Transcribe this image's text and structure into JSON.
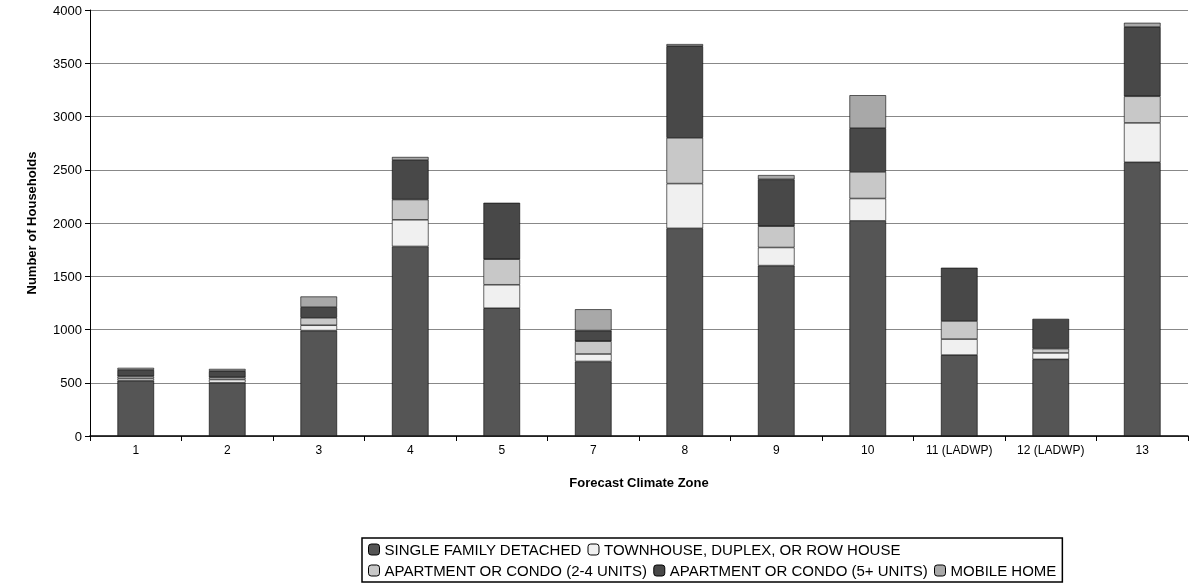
{
  "chart_data": {
    "type": "bar",
    "stacked": true,
    "xlabel": "Forecast Climate Zone",
    "ylabel": "Number of Households",
    "categories": [
      "1",
      "2",
      "3",
      "4",
      "5",
      "7",
      "8",
      "9",
      "10",
      "11 (LADWP)",
      "12 (LADWP)",
      "13"
    ],
    "series": [
      {
        "name": "SINGLE FAMILY DETACHED",
        "color": "#555555",
        "values": [
          520,
          500,
          990,
          1780,
          1200,
          700,
          1950,
          1600,
          2020,
          760,
          720,
          2570
        ]
      },
      {
        "name": "TOWNHOUSE, DUPLEX, OR ROW HOUSE",
        "color": "#f0f0f0",
        "values": [
          20,
          30,
          50,
          250,
          220,
          70,
          420,
          170,
          210,
          150,
          60,
          370
        ]
      },
      {
        "name": "APARTMENT OR CONDO (2-4 UNITS)",
        "color": "#c8c8c8",
        "values": [
          20,
          20,
          70,
          190,
          240,
          120,
          430,
          200,
          250,
          170,
          40,
          250
        ]
      },
      {
        "name": "APARTMENT OR CONDO (5+ UNITS)",
        "color": "#484848",
        "values": [
          60,
          60,
          100,
          370,
          530,
          100,
          860,
          440,
          410,
          500,
          280,
          650
        ]
      },
      {
        "name": "MOBILE HOME",
        "color": "#a8a8a8",
        "values": [
          20,
          20,
          100,
          30,
          null,
          200,
          20,
          40,
          310,
          null,
          null,
          40
        ]
      }
    ],
    "ylim": [
      0,
      4000
    ],
    "yticks": [
      0,
      500,
      {
        "value": 1000,
        "label": "1000"
      },
      {
        "value": 1500,
        "label": "1500"
      },
      {
        "value": 2000,
        "label": "2000"
      },
      {
        "value": 2500,
        "label": "2500"
      },
      {
        "value": 3000,
        "label": "3000"
      },
      {
        "value": 3500,
        "label": "3500"
      },
      {
        "value": 4000,
        "label": "4000"
      }
    ],
    "grid": "y",
    "legend": "bottom"
  }
}
